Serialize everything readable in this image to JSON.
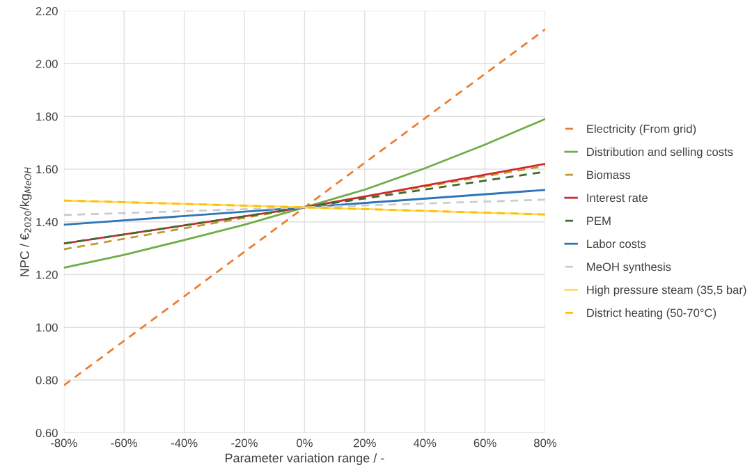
{
  "chart_data": {
    "type": "line",
    "xlabel": "Parameter variation range / -",
    "ylabel": "NPC / €$_{2020}$/kg$_{MeOH}$",
    "xlim": [
      -80,
      80
    ],
    "xticks": [
      {
        "value": -80,
        "label": "-80%"
      },
      {
        "value": -60,
        "label": "-60%"
      },
      {
        "value": -40,
        "label": "-40%"
      },
      {
        "value": -20,
        "label": "-20%"
      },
      {
        "value": 0,
        "label": "0%"
      },
      {
        "value": 20,
        "label": "20%"
      },
      {
        "value": 40,
        "label": "40%"
      },
      {
        "value": 60,
        "label": "60%"
      },
      {
        "value": 80,
        "label": "80%"
      }
    ],
    "ylim": [
      0.6,
      2.2
    ],
    "yticks": [
      {
        "value": 0.6,
        "label": "0.60"
      },
      {
        "value": 0.8,
        "label": "0.80"
      },
      {
        "value": 1.0,
        "label": "1.00"
      },
      {
        "value": 1.2,
        "label": "1.20"
      },
      {
        "value": 1.4,
        "label": "1.40"
      },
      {
        "value": 1.6,
        "label": "1.60"
      },
      {
        "value": 1.8,
        "label": "1.80"
      },
      {
        "value": 2.0,
        "label": "2.00"
      },
      {
        "value": 2.2,
        "label": "2.20"
      }
    ],
    "grid": true,
    "legend": "right",
    "marker": "none",
    "series": [
      {
        "name": "Electricity (From grid)",
        "color": "#ed7d31",
        "line_style": "dashed",
        "x": [
          -80,
          0,
          80
        ],
        "values": [
          0.78,
          1.455,
          2.13
        ]
      },
      {
        "name": "Distribution and selling costs",
        "color": "#70ad47",
        "line_style": "solid",
        "x": [
          -80,
          -60,
          -40,
          -20,
          0,
          20,
          40,
          60,
          80
        ],
        "values": [
          1.226,
          1.275,
          1.331,
          1.389,
          1.455,
          1.522,
          1.603,
          1.693,
          1.79
        ]
      },
      {
        "name": "Biomass",
        "color": "#c09a2c",
        "line_style": "dashed",
        "x": [
          -80,
          0,
          80
        ],
        "values": [
          1.296,
          1.455,
          1.612
        ]
      },
      {
        "name": "Interest rate",
        "color": "#d0282c",
        "line_style": "solid",
        "x": [
          -80,
          0,
          80
        ],
        "values": [
          1.318,
          1.455,
          1.62
        ]
      },
      {
        "name": "PEM",
        "color": "#3f6b2e",
        "line_style": "dashed",
        "x": [
          -80,
          0,
          80
        ],
        "values": [
          1.318,
          1.455,
          1.59
        ]
      },
      {
        "name": "Labor costs",
        "color": "#2e75b6",
        "line_style": "solid",
        "x": [
          -80,
          0,
          80
        ],
        "values": [
          1.389,
          1.455,
          1.521
        ]
      },
      {
        "name": "MeOH synthesis",
        "color": "#cccccc",
        "line_style": "dashed",
        "x": [
          -80,
          0,
          80
        ],
        "values": [
          1.426,
          1.455,
          1.484
        ]
      },
      {
        "name": "High pressure steam (35,5 bar)",
        "color": "#ffd966",
        "line_style": "solid",
        "x": [
          -80,
          0,
          80
        ],
        "values": [
          1.481,
          1.455,
          1.428
        ]
      },
      {
        "name": "District heating (50-70°C)",
        "color": "#ffc000",
        "line_style": "dashed",
        "x": [
          -80,
          0,
          80
        ],
        "values": [
          1.481,
          1.455,
          1.428
        ]
      }
    ]
  }
}
